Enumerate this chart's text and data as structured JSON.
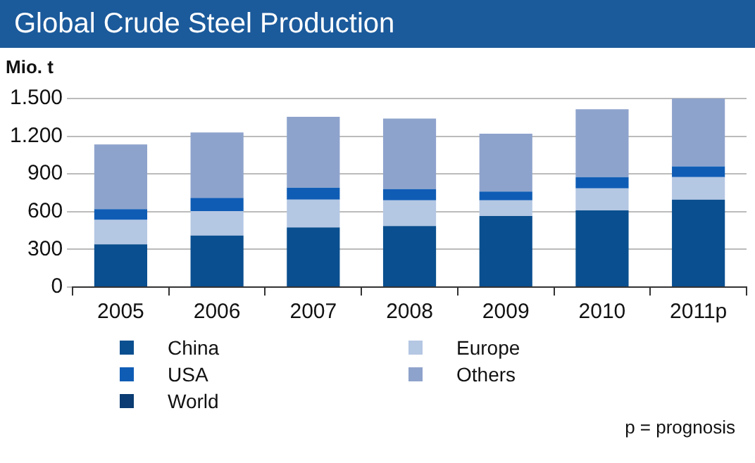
{
  "chart_data": {
    "type": "bar",
    "title": "Global Crude Steel Production",
    "ylabel": "Mio. t",
    "stacked": true,
    "legend": "bottom",
    "grid": "y",
    "categories": [
      "2005",
      "2006",
      "2007",
      "2008",
      "2009",
      "2010",
      "2011p"
    ],
    "series": [
      {
        "name": "China",
        "color": "#0a4f8f",
        "values": [
          340,
          410,
          475,
          485,
          565,
          610,
          695
        ]
      },
      {
        "name": "Europe",
        "color": "#b4c7e3",
        "values": [
          195,
          195,
          220,
          205,
          125,
          175,
          180
        ]
      },
      {
        "name": "USA",
        "color": "#0f5cb5",
        "values": [
          85,
          105,
          95,
          90,
          70,
          90,
          85
        ]
      },
      {
        "name": "Others",
        "color": "#8ea3cc",
        "values": [
          515,
          520,
          565,
          560,
          460,
          540,
          540
        ]
      },
      {
        "name": "World",
        "color": "#0b3c73",
        "values": [
          null,
          null,
          null,
          null,
          null,
          null,
          null
        ]
      }
    ],
    "ylim": [
      0,
      1500
    ],
    "yticks": [
      0,
      300,
      600,
      900,
      {
        "value": 1200,
        "label": "1.200"
      },
      {
        "value": 1500,
        "label": "1.500"
      }
    ],
    "annotations": [
      "p = prognosis"
    ]
  }
}
